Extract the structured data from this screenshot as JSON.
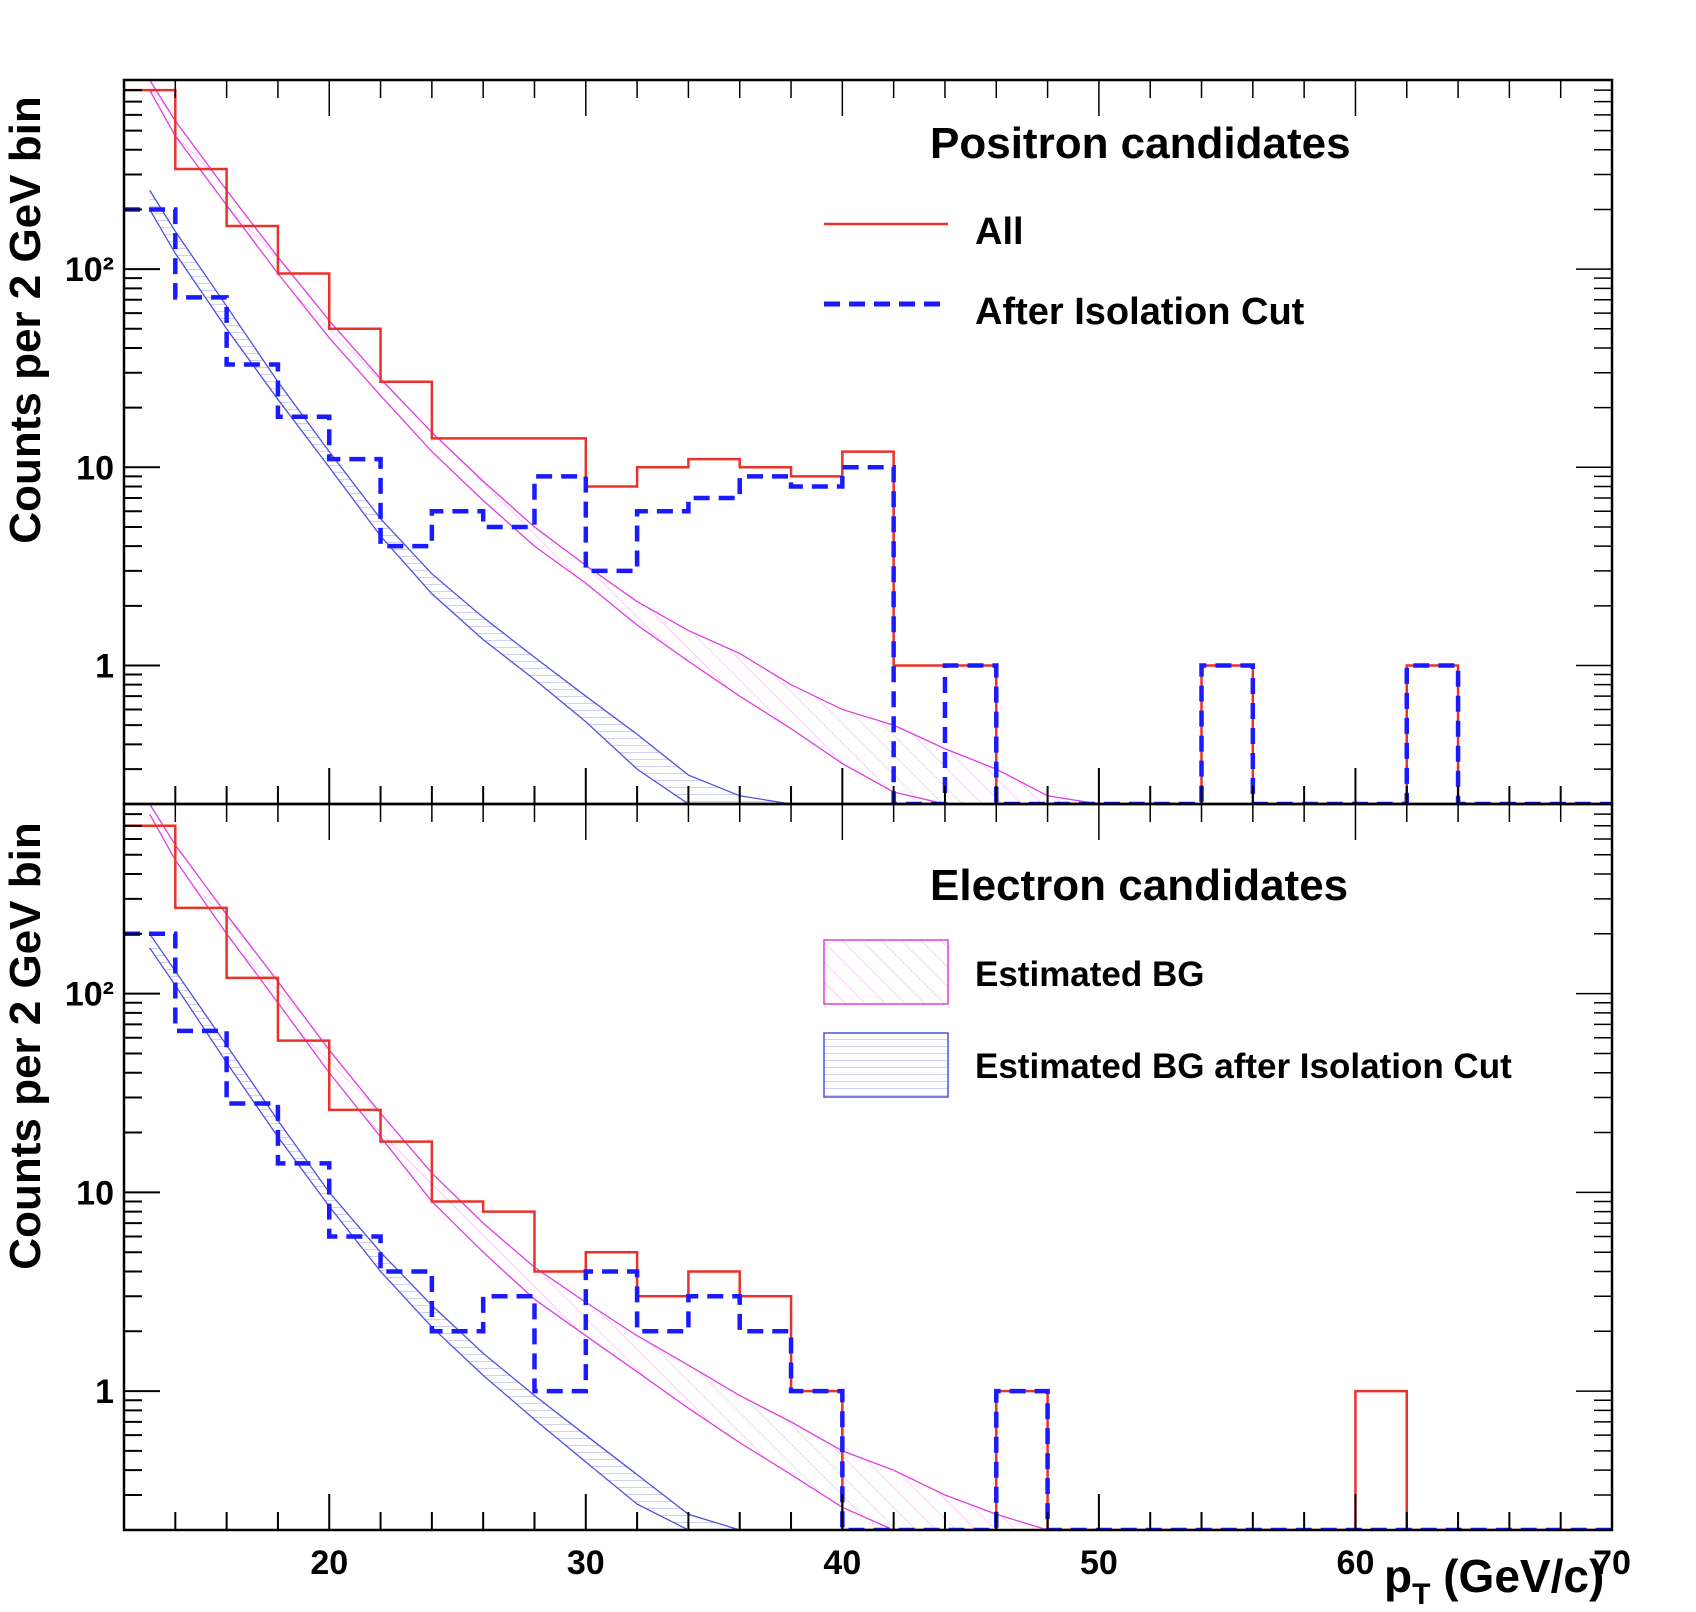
{
  "chart_data": [
    {
      "type": "histogram",
      "panel": "top",
      "legend_title": "Positron candidates",
      "ylabel": "Counts per 2 GeV bin",
      "xlabel": "",
      "ylog": true,
      "xlim": [
        12,
        70
      ],
      "ylim": [
        0.2,
        900
      ],
      "y_tick_labels": [
        "1",
        "10",
        "10²"
      ],
      "x_tick_labels": [],
      "bin_edges": [
        12,
        14,
        16,
        18,
        20,
        22,
        24,
        26,
        28,
        30,
        32,
        34,
        36,
        38,
        40,
        42,
        44,
        46,
        48,
        50,
        52,
        54,
        56,
        58,
        60,
        62,
        64,
        66,
        68,
        70
      ],
      "series": [
        {
          "name": "All",
          "color": "#e8322a",
          "style": "solid",
          "values": [
            800,
            320,
            165,
            95,
            50,
            27,
            14,
            14,
            14,
            8,
            10,
            11,
            10,
            9,
            12,
            1,
            1,
            0,
            0,
            0,
            0,
            1,
            0,
            0,
            0,
            1,
            0,
            0,
            0
          ]
        },
        {
          "name": "After Isolation Cut",
          "color": "#1a1aff",
          "style": "dashed",
          "values": [
            200,
            72,
            33,
            18,
            11,
            4,
            6,
            5,
            9,
            3,
            6,
            7,
            9,
            8,
            10,
            0,
            1,
            0,
            0,
            0,
            0,
            1,
            0,
            0,
            0,
            1,
            0,
            0,
            0
          ]
        }
      ],
      "bands": [
        {
          "name": "Estimated BG",
          "color": "#e23ce2",
          "x": [
            13,
            14,
            16,
            18,
            20,
            22,
            24,
            26,
            28,
            30,
            32,
            34,
            36,
            38,
            40,
            42,
            44,
            46,
            48,
            50
          ],
          "upper": [
            900,
            560,
            250,
            115,
            55,
            28,
            15,
            8.5,
            5,
            3.2,
            2.1,
            1.5,
            1.15,
            0.8,
            0.6,
            0.5,
            0.38,
            0.3,
            0.22,
            0.2
          ],
          "lower": [
            800,
            470,
            210,
            95,
            45,
            23,
            12,
            6.8,
            4,
            2.6,
            1.6,
            1.05,
            0.7,
            0.48,
            0.32,
            0.23,
            0.2,
            0.2,
            0.2,
            0.2
          ]
        },
        {
          "name": "Estimated BG after Isolation Cut",
          "color": "#5050e0",
          "x": [
            13,
            14,
            16,
            18,
            20,
            22,
            24,
            26,
            28,
            30,
            32,
            34,
            36,
            38,
            40
          ],
          "upper": [
            250,
            155,
            65,
            27,
            12,
            5.5,
            2.9,
            1.75,
            1.1,
            0.7,
            0.45,
            0.28,
            0.22,
            0.2,
            0.2
          ],
          "lower": [
            200,
            120,
            50,
            22,
            10,
            4.5,
            2.3,
            1.35,
            0.85,
            0.52,
            0.3,
            0.2,
            0.2,
            0.2,
            0.2
          ]
        }
      ]
    },
    {
      "type": "histogram",
      "panel": "bottom",
      "legend_title": "Electron candidates",
      "ylabel": "Counts per 2 GeV bin",
      "xlabel": "p_T (GeV/c)",
      "ylog": true,
      "xlim": [
        12,
        70
      ],
      "ylim": [
        0.2,
        900
      ],
      "y_tick_labels": [
        "1",
        "10",
        "10²"
      ],
      "x_tick_labels": [
        "20",
        "30",
        "40",
        "50",
        "60",
        "70"
      ],
      "bin_edges": [
        12,
        14,
        16,
        18,
        20,
        22,
        24,
        26,
        28,
        30,
        32,
        34,
        36,
        38,
        40,
        42,
        44,
        46,
        48,
        50,
        52,
        54,
        56,
        58,
        60,
        62,
        64,
        66,
        68,
        70
      ],
      "series": [
        {
          "name": "All",
          "color": "#e8322a",
          "style": "solid",
          "values": [
            700,
            270,
            120,
            58,
            26,
            18,
            9,
            8,
            4,
            5,
            3,
            4,
            3,
            1,
            0,
            0,
            0,
            1,
            0,
            0,
            0,
            0,
            0,
            0,
            1,
            0,
            0,
            0,
            0
          ]
        },
        {
          "name": "After Isolation Cut",
          "color": "#1a1aff",
          "style": "dashed",
          "values": [
            200,
            65,
            28,
            14,
            6,
            4,
            2,
            3,
            1,
            4,
            2,
            3,
            2,
            1,
            0,
            0,
            0,
            1,
            0,
            0,
            0,
            0,
            0,
            0,
            0,
            0,
            0,
            0,
            0
          ]
        }
      ],
      "bands": [
        {
          "name": "Estimated BG",
          "color": "#e23ce2",
          "x": [
            13,
            14,
            16,
            18,
            20,
            22,
            24,
            26,
            28,
            30,
            32,
            34,
            36,
            38,
            40,
            42,
            44,
            46,
            48
          ],
          "upper": [
            900,
            560,
            250,
            115,
            52,
            25,
            12.5,
            7,
            4.2,
            2.8,
            1.9,
            1.35,
            0.95,
            0.7,
            0.5,
            0.4,
            0.3,
            0.24,
            0.2
          ],
          "lower": [
            800,
            470,
            200,
            90,
            40,
            19,
            9,
            5,
            2.9,
            1.9,
            1.25,
            0.82,
            0.55,
            0.38,
            0.26,
            0.2,
            0.2,
            0.2,
            0.2
          ]
        },
        {
          "name": "Estimated BG after Isolation Cut",
          "color": "#5050e0",
          "x": [
            13,
            14,
            16,
            18,
            20,
            22,
            24,
            26,
            28,
            30,
            32,
            34,
            36,
            38
          ],
          "upper": [
            200,
            130,
            55,
            23,
            10,
            5,
            2.7,
            1.55,
            0.95,
            0.6,
            0.38,
            0.24,
            0.2,
            0.2
          ],
          "lower": [
            170,
            110,
            45,
            19,
            8.5,
            4,
            2.1,
            1.2,
            0.72,
            0.44,
            0.27,
            0.2,
            0.2,
            0.2
          ]
        }
      ]
    }
  ],
  "legend": {
    "all": "All",
    "iso": "After Isolation Cut",
    "bg": "Estimated BG",
    "bg_iso": "Estimated BG after Isolation Cut"
  }
}
